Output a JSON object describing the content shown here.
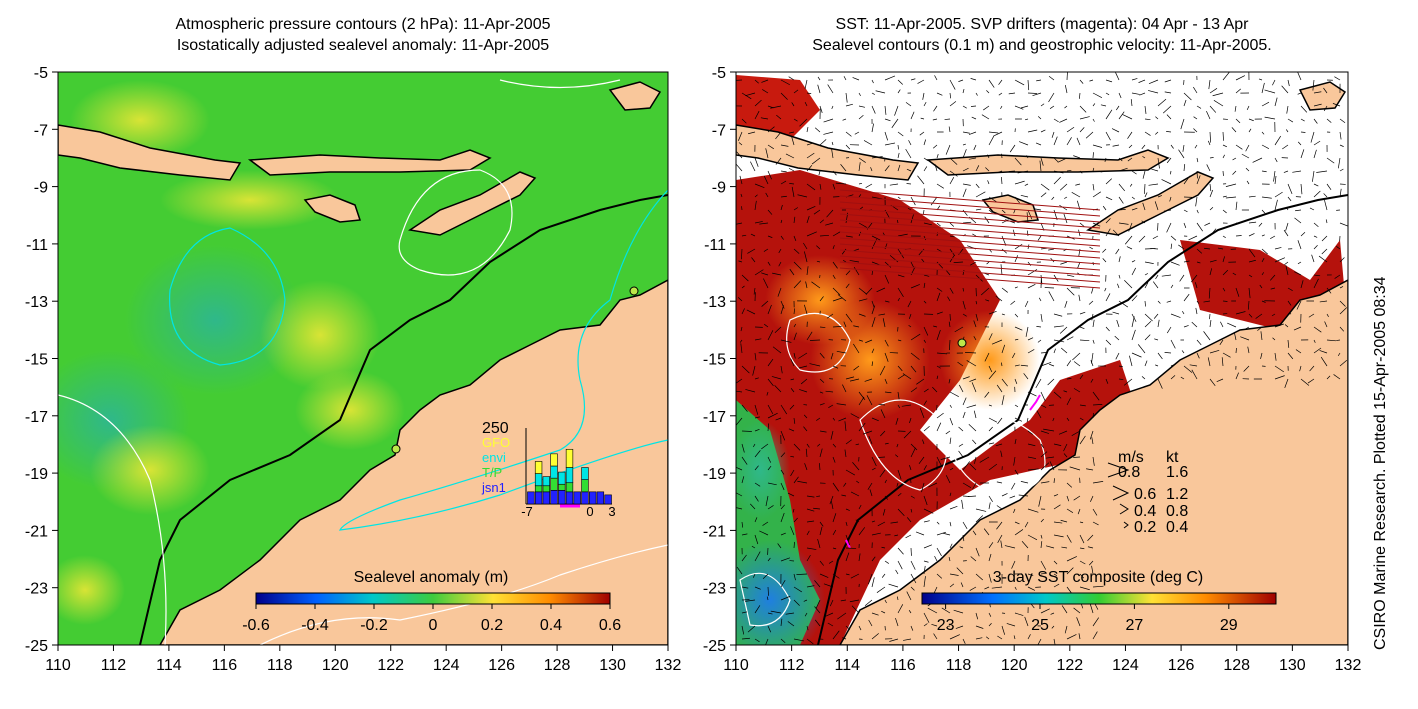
{
  "left_panel": {
    "title_line1": "Atmospheric pressure contours (2 hPa): 11-Apr-2005",
    "title_line2": "Isostatically adjusted sealevel anomaly: 11-Apr-2005",
    "colorbar_label": "Sealevel anomaly (m)",
    "colorbar_ticks": [
      "-0.6",
      "-0.4",
      "-0.2",
      "0",
      "0.2",
      "0.4",
      "0.6"
    ],
    "inset": {
      "y_tick": "250",
      "x_ticks": [
        "-7",
        "0",
        "3"
      ],
      "legend": [
        {
          "label": "GFO",
          "color": "#ffff33"
        },
        {
          "label": "envi",
          "color": "#00e5e5"
        },
        {
          "label": "T/P",
          "color": "#33dd33"
        },
        {
          "label": "jsn1",
          "color": "#2222ff"
        }
      ]
    }
  },
  "right_panel": {
    "title_line1": "SST: 11-Apr-2005. SVP drifters (magenta): 04 Apr - 13 Apr",
    "title_line2": "Sealevel contours (0.1 m) and geostrophic velocity: 11-Apr-2005.",
    "colorbar_label": "3-day SST composite (deg C)",
    "colorbar_ticks": [
      "23",
      "25",
      "27",
      "29"
    ],
    "velocity_key": {
      "header_ms": "m/s",
      "header_kt": "kt",
      "rows": [
        {
          "ms": "0.8",
          "kt": "1.6"
        },
        {
          "ms": "0.6",
          "kt": "1.2"
        },
        {
          "ms": "0.4",
          "kt": "0.8"
        },
        {
          "ms": "0.2",
          "kt": "0.4"
        }
      ]
    }
  },
  "credit": "CSIRO Marine Research. Plotted 15-Apr-2005 08:34",
  "colors": {
    "land": "#f9c79b",
    "ocean_green": "#44cc33",
    "sst_red": "#b5120c",
    "coast": "#000000"
  },
  "chart_data": [
    {
      "type": "heatmap",
      "title": "Atmospheric pressure contours (2 hPa): 11-Apr-2005 / Isostatically adjusted sealevel anomaly: 11-Apr-2005",
      "xlim": [
        110,
        132
      ],
      "ylim": [
        -25,
        -5
      ],
      "x_ticks": [
        "110",
        "112",
        "114",
        "116",
        "118",
        "120",
        "122",
        "124",
        "126",
        "128",
        "130",
        "132"
      ],
      "y_ticks": [
        "-5",
        "-7",
        "-9",
        "-11",
        "-13",
        "-15",
        "-17",
        "-19",
        "-21",
        "-23",
        "-25"
      ],
      "colorbar": {
        "label": "Sealevel anomaly (m)",
        "range": [
          -0.6,
          0.6
        ]
      },
      "inset_bars": {
        "x": [
          -7,
          -6,
          -5,
          -4,
          -3,
          -2,
          -1,
          0,
          1,
          2,
          3
        ],
        "series": [
          {
            "name": "jsn1",
            "values": [
              40,
              40,
              40,
              45,
              45,
              40,
              40,
              40,
              40,
              40,
              30
            ]
          },
          {
            "name": "T/P",
            "values": [
              0,
              20,
              20,
              40,
              20,
              30,
              0,
              40,
              0,
              0,
              0
            ]
          },
          {
            "name": "envi",
            "values": [
              0,
              40,
              30,
              40,
              40,
              50,
              0,
              40,
              0,
              0,
              0
            ]
          },
          {
            "name": "GFO",
            "values": [
              0,
              40,
              0,
              40,
              0,
              60,
              0,
              0,
              0,
              0,
              0
            ]
          }
        ],
        "ymax": 250
      }
    },
    {
      "type": "heatmap",
      "title": "SST: 11-Apr-2005. SVP drifters (magenta): 04 Apr - 13 Apr / Sealevel contours (0.1 m) and geostrophic velocity: 11-Apr-2005.",
      "xlim": [
        110,
        132
      ],
      "ylim": [
        -25,
        -5
      ],
      "x_ticks": [
        "110",
        "112",
        "114",
        "116",
        "118",
        "120",
        "122",
        "124",
        "126",
        "128",
        "130",
        "132"
      ],
      "y_ticks": [
        "-5",
        "-7",
        "-9",
        "-11",
        "-13",
        "-15",
        "-17",
        "-19",
        "-21",
        "-23",
        "-25"
      ],
      "colorbar": {
        "label": "3-day SST composite (deg C)",
        "range": [
          22.5,
          30
        ]
      }
    }
  ]
}
